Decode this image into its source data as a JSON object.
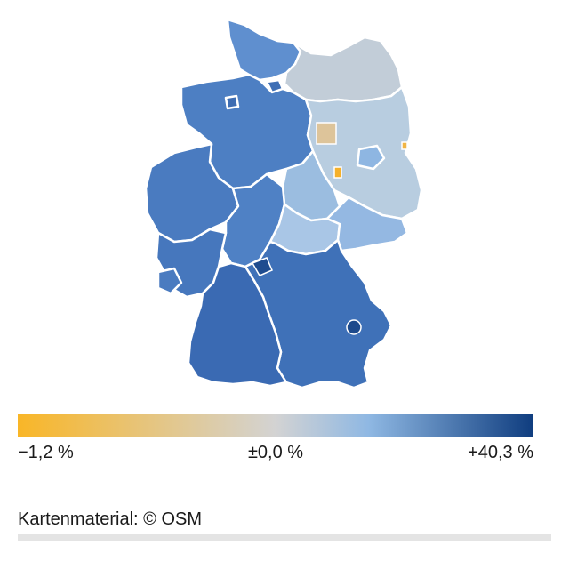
{
  "map": {
    "regions": [
      {
        "name": "schleswig-holstein",
        "fill": "#5f8fcf"
      },
      {
        "name": "hamburg",
        "fill": "#3f6fb5"
      },
      {
        "name": "mecklenburg-vorpommern",
        "fill": "#c2cdd8"
      },
      {
        "name": "niedersachsen",
        "fill": "#4d7fc3"
      },
      {
        "name": "bremen",
        "fill": "#3e6db2"
      },
      {
        "name": "berlin",
        "fill": "#8eb6e2"
      },
      {
        "name": "brandenburg",
        "fill": "#b8cde0"
      },
      {
        "name": "sachsen-anhalt",
        "fill": "#9bbde0"
      },
      {
        "name": "nordrhein-westfalen",
        "fill": "#4a7bc0"
      },
      {
        "name": "hessen",
        "fill": "#4f81c5"
      },
      {
        "name": "thueringen",
        "fill": "#a9c6e6"
      },
      {
        "name": "sachsen",
        "fill": "#94b8e2"
      },
      {
        "name": "rheinland-pfalz",
        "fill": "#4677bd"
      },
      {
        "name": "saarland",
        "fill": "#4a7bc0"
      },
      {
        "name": "bayern",
        "fill": "#3f71b8"
      },
      {
        "name": "baden-wuerttemberg",
        "fill": "#3a6ab3"
      }
    ],
    "highlights": [
      {
        "name": "negative-district-west-brandenburg",
        "fill": "#ddc49a"
      },
      {
        "name": "negative-district-uckermark",
        "fill": "#f0b545"
      },
      {
        "name": "negative-district-sachsen-anhalt",
        "fill": "#f5b02a"
      },
      {
        "name": "strong-district-bayern",
        "fill": "#1d4a8c"
      },
      {
        "name": "strong-district-mainz",
        "fill": "#1f4c8f"
      }
    ]
  },
  "legend": {
    "min_label": "−1,2 %",
    "mid_label": "±0,0 %",
    "max_label": "+40,3 %",
    "colors": [
      "#f9b627",
      "#d3d3d3",
      "#8fb8e3",
      "#0f3d7f"
    ]
  },
  "attribution": "Kartenmaterial: © OSM"
}
